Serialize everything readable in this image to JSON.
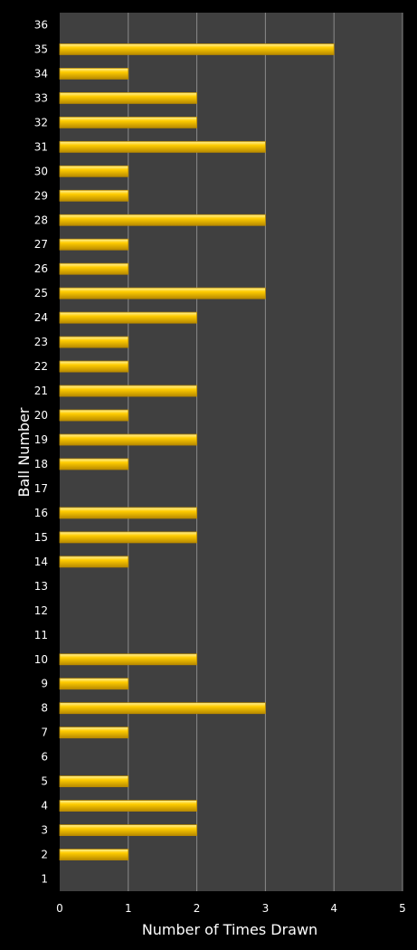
{
  "chart_data": {
    "type": "bar",
    "orientation": "horizontal",
    "title": "",
    "xlabel": "Number of Times Drawn",
    "ylabel": "Ball Number",
    "xlim": [
      0,
      5
    ],
    "x_ticks": [
      "0",
      "1",
      "2",
      "3",
      "4",
      "5"
    ],
    "grid": "vertical",
    "legend": "none",
    "colors": {
      "background": "#000000",
      "plot_area": "#404040",
      "bar": "#ffcc00",
      "bar_highlight": "#fff2a0",
      "bar_shadow": "#b88a00",
      "grid": "#8a8a8a",
      "text": "#ffffff"
    },
    "categories": [
      "1",
      "2",
      "3",
      "4",
      "5",
      "6",
      "7",
      "8",
      "9",
      "10",
      "11",
      "12",
      "13",
      "14",
      "15",
      "16",
      "17",
      "18",
      "19",
      "20",
      "21",
      "22",
      "23",
      "24",
      "25",
      "26",
      "27",
      "28",
      "29",
      "30",
      "31",
      "32",
      "33",
      "34",
      "35",
      "36"
    ],
    "values": [
      0,
      1,
      2,
      2,
      1,
      0,
      1,
      3,
      1,
      2,
      0,
      0,
      0,
      1,
      2,
      2,
      0,
      1,
      2,
      1,
      2,
      1,
      1,
      2,
      3,
      1,
      1,
      3,
      1,
      1,
      3,
      2,
      2,
      1,
      4,
      0
    ]
  }
}
